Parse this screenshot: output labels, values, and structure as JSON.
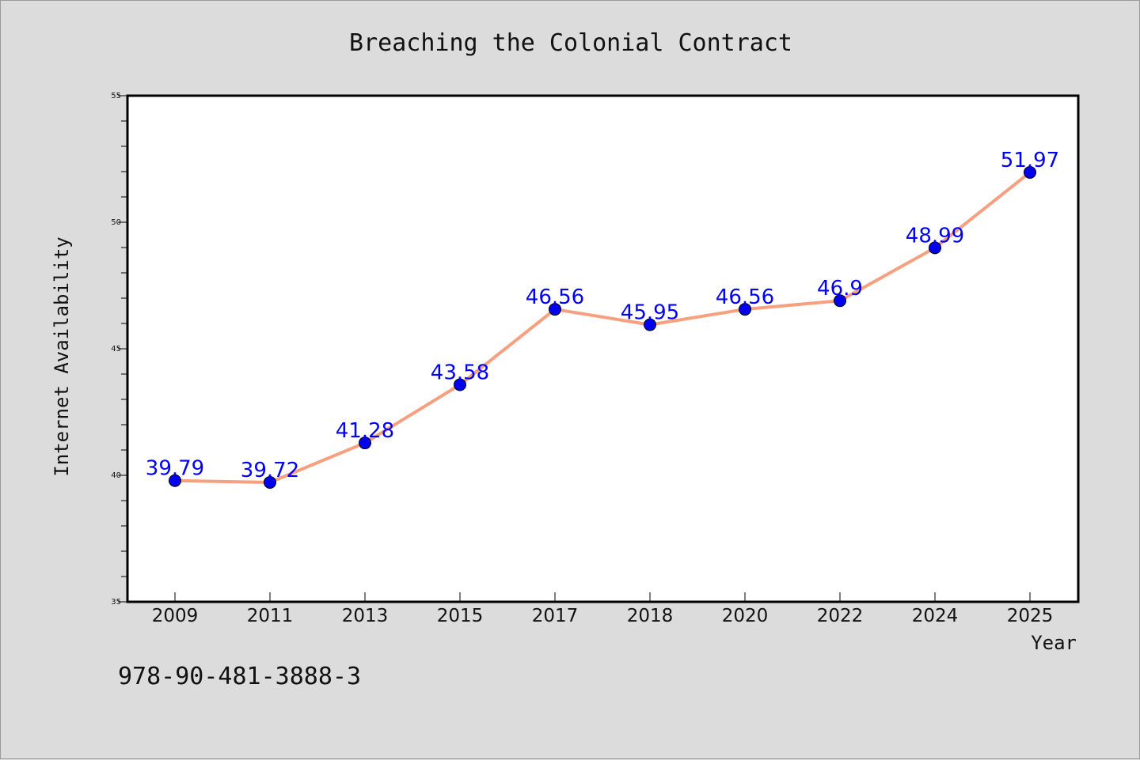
{
  "chart_data": {
    "type": "line",
    "title": "Breaching the Colonial Contract",
    "xlabel": "Year",
    "ylabel": "Internet Availability",
    "categories": [
      "2009",
      "2011",
      "2013",
      "2015",
      "2017",
      "2018",
      "2020",
      "2022",
      "2024",
      "2025"
    ],
    "series": [
      {
        "values": [
          39.79,
          39.72,
          41.28,
          43.58,
          46.56,
          45.95,
          46.56,
          46.9,
          48.99,
          51.97
        ],
        "labels": [
          "39.79",
          "39.72",
          "41.28",
          "43.58",
          "46.56",
          "45.95",
          "46.56",
          "46.9",
          "48.99",
          "51.97"
        ],
        "line_color": "#f7a07f",
        "marker_color": "#0000ee"
      }
    ],
    "ylim": [
      35,
      55
    ],
    "y_ticks": [
      "35",
      "40",
      "45",
      "50",
      "55"
    ],
    "grid": false,
    "legend": "none",
    "label_color": "#0000ff",
    "background_color": "#dcdcdc",
    "plot_background": "#ffffff"
  },
  "footer": {
    "text": "978-90-481-3888-3"
  }
}
